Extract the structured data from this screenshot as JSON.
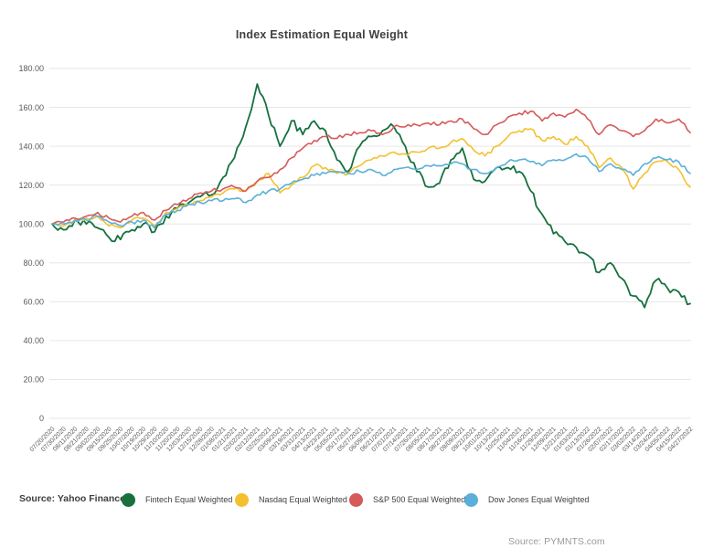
{
  "title": "Index Estimation Equal Weight",
  "source_left": "Source: Yahoo Finance",
  "source_right": "Source: PYMNTS.com",
  "colors": {
    "fintech": "#16713e",
    "nasdaq": "#f3c130",
    "sp500": "#d65a5a",
    "dowjones": "#5ab0d8",
    "grid": "#e6e6e6",
    "title_text": "#404040",
    "axis_text": "#595959",
    "source_right_text": "#9b9b9b"
  },
  "legend": {
    "items": [
      {
        "label": "Fintech Equal Weighted",
        "color_key": "fintech"
      },
      {
        "label": "Nasdaq Equal Weighted",
        "color_key": "nasdaq"
      },
      {
        "label": "S&P 500 Equal Weighted",
        "color_key": "sp500"
      },
      {
        "label": "Dow Jones Equal Weighted",
        "color_key": "dowjones"
      }
    ]
  },
  "chart_data": {
    "type": "line",
    "title": "Index Estimation Equal Weight",
    "xlabel": "",
    "ylabel": "",
    "ylim": [
      0,
      180
    ],
    "grid": "horizontal",
    "legend_position": "bottom",
    "yticks": {
      "values": [
        180,
        160,
        140,
        120,
        100,
        80,
        60,
        40,
        20,
        0
      ],
      "labels": [
        "180.00",
        "160.00",
        "140.00",
        "120.00",
        "100.00",
        "80.00",
        "60.00",
        "40.00",
        "20.00",
        "0"
      ]
    },
    "x": [
      "07/20/2020",
      "07/30/2020",
      "08/11/2020",
      "08/21/2020",
      "09/02/2020",
      "09/15/2020",
      "09/25/2020",
      "10/07/2020",
      "10/19/2020",
      "10/29/2020",
      "11/10/2020",
      "11/20/2020",
      "12/03/2020",
      "12/15/2020",
      "12/28/2020",
      "01/08/2021",
      "01/21/2021",
      "02/02/2021",
      "02/12/2021",
      "02/25/2021",
      "03/09/2021",
      "03/19/2021",
      "03/31/2021",
      "04/13/2021",
      "04/23/2021",
      "05/05/2021",
      "05/17/2021",
      "05/27/2021",
      "06/09/2021",
      "06/21/2021",
      "07/01/2021",
      "07/14/2021",
      "07/26/2021",
      "08/05/2021",
      "08/17/2021",
      "08/27/2021",
      "09/09/2021",
      "09/21/2021",
      "10/01/2021",
      "10/13/2021",
      "10/25/2021",
      "11/04/2021",
      "11/16/2021",
      "11/29/2021",
      "12/09/2021",
      "12/21/2021",
      "01/03/2022",
      "01/13/2022",
      "01/26/2022",
      "02/07/2022",
      "02/17/2022",
      "03/02/2022",
      "03/14/2022",
      "03/24/2022",
      "04/05/2022",
      "04/15/2022",
      "04/27/2022"
    ],
    "series": [
      {
        "name": "Fintech Equal Weighted",
        "color_key": "fintech",
        "values": [
          100,
          97,
          102,
          100,
          98,
          93,
          92,
          97,
          100,
          96,
          104,
          108,
          111,
          114,
          115,
          124,
          134,
          150,
          172,
          156,
          140,
          153,
          146,
          153,
          148,
          133,
          127,
          140,
          145,
          148,
          150,
          140,
          127,
          119,
          121,
          133,
          139,
          123,
          122,
          129,
          129,
          127,
          117,
          105,
          95,
          91,
          88,
          84,
          75,
          80,
          72,
          63,
          57,
          71,
          67,
          65,
          59
        ]
      },
      {
        "name": "Nasdaq Equal Weighted",
        "color_key": "nasdaq",
        "values": [
          100,
          99,
          102,
          103,
          104,
          99,
          98,
          102,
          103,
          99,
          106,
          108,
          110,
          112,
          114,
          116,
          118,
          117,
          122,
          126,
          116,
          120,
          124,
          130,
          129,
          126,
          126,
          130,
          133,
          135,
          137,
          136,
          137,
          139,
          139,
          142,
          144,
          138,
          135,
          140,
          145,
          148,
          149,
          143,
          145,
          141,
          145,
          140,
          129,
          134,
          129,
          118,
          126,
          132,
          132,
          128,
          119
        ]
      },
      {
        "name": "S&P 500 Equal Weighted",
        "color_key": "sp500",
        "values": [
          100,
          101,
          103,
          104,
          106,
          103,
          101,
          104,
          106,
          102,
          107,
          110,
          113,
          116,
          117,
          118,
          119,
          117,
          122,
          124,
          128,
          134,
          139,
          143,
          145,
          144,
          146,
          147,
          148,
          146,
          150,
          150,
          151,
          152,
          151,
          153,
          154,
          149,
          146,
          151,
          155,
          157,
          158,
          153,
          157,
          155,
          159,
          154,
          146,
          151,
          148,
          145,
          148,
          154,
          152,
          154,
          147
        ]
      },
      {
        "name": "Dow Jones Equal Weighted",
        "color_key": "dowjones",
        "values": [
          100,
          100,
          102,
          102,
          104,
          101,
          99,
          101,
          102,
          98,
          105,
          107,
          110,
          111,
          112,
          112,
          113,
          111,
          115,
          117,
          118,
          121,
          123,
          125,
          126,
          127,
          126,
          127,
          128,
          125,
          128,
          129,
          128,
          130,
          130,
          131,
          131,
          128,
          126,
          129,
          132,
          133,
          132,
          130,
          133,
          133,
          136,
          134,
          127,
          131,
          128,
          125,
          131,
          134,
          133,
          132,
          126
        ]
      }
    ]
  }
}
